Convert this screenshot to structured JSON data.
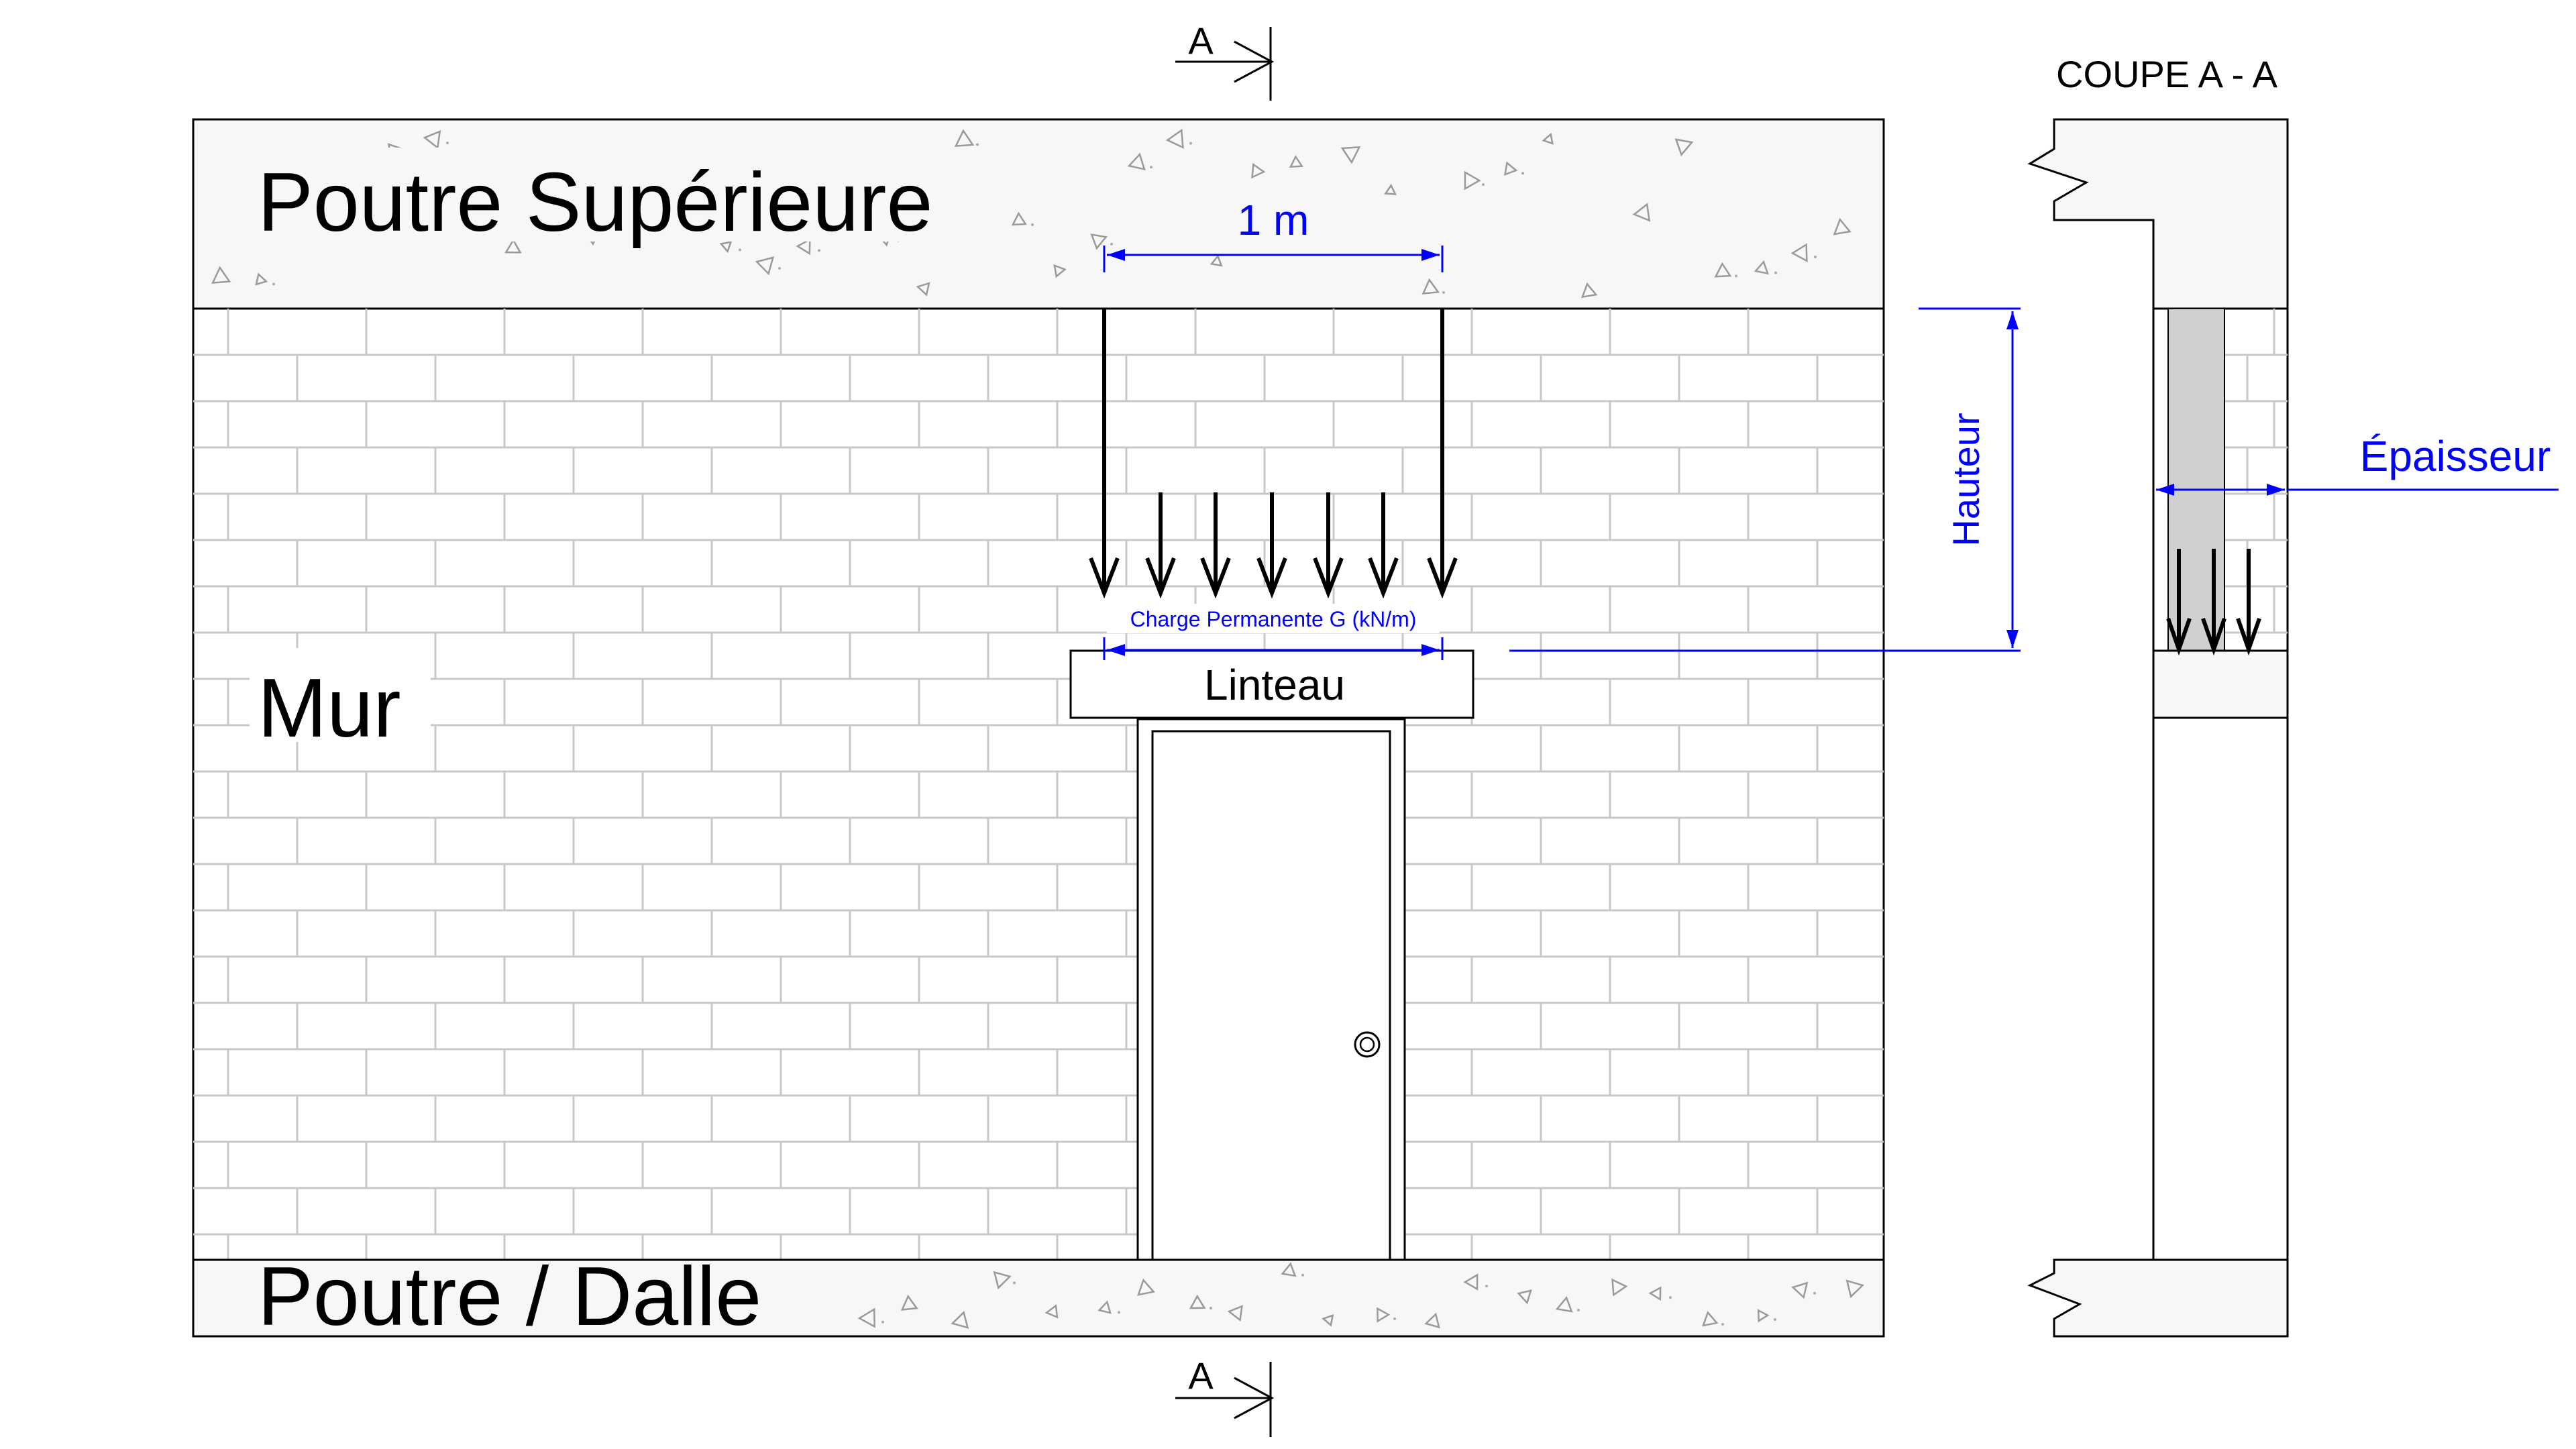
{
  "labels": {
    "top_beam": "Poutre Supérieure",
    "wall": "Mur",
    "bottom_beam": "Poutre / Dalle",
    "lintel": "Linteau",
    "section_title": "COUPE A - A",
    "section_marker_top": "A",
    "section_marker_bottom": "A"
  },
  "dimensions": {
    "width": "1 m",
    "height": "Hauteur",
    "thickness": "Épaisseur"
  },
  "load": {
    "label": "Charge Permanente G (kN/m)"
  },
  "colors": {
    "dimension": "#0000ff",
    "brick_joint": "#c8c8c8",
    "lintel_section": "#d0d0d0"
  }
}
